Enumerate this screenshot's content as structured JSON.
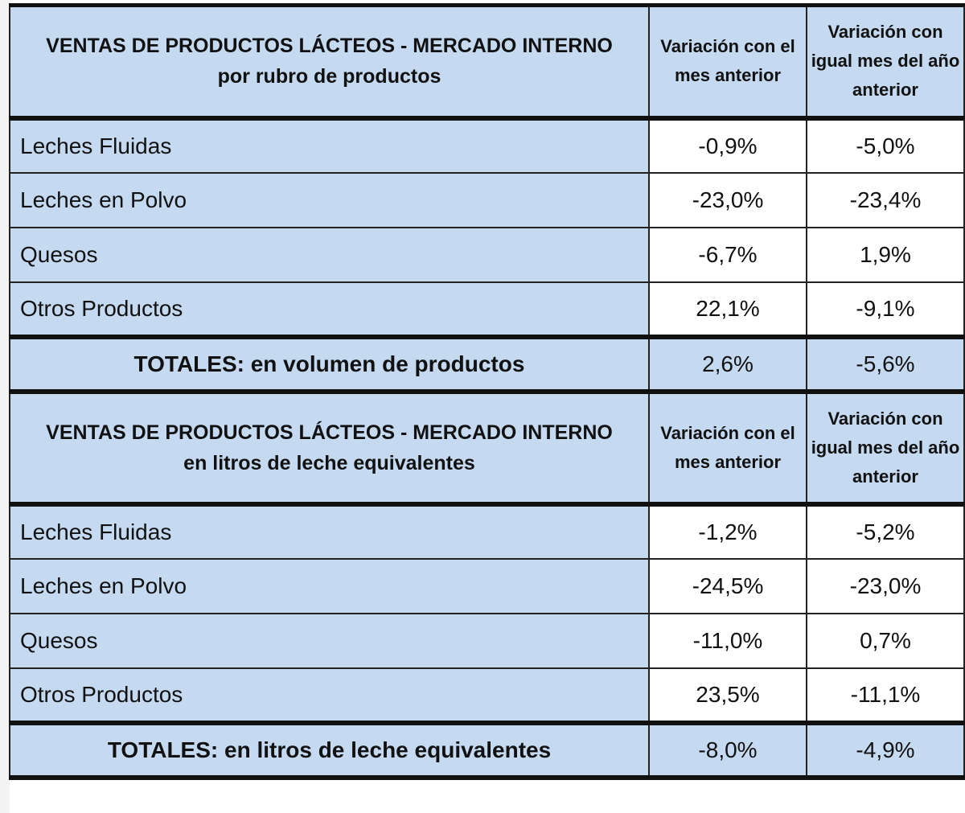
{
  "chart_data": [
    {
      "type": "table",
      "title_line1": "VENTAS DE PRODUCTOS LÁCTEOS - MERCADO INTERNO",
      "title_line2": "por rubro de productos",
      "col1_header": "Variación con el mes anterior",
      "col2_header": "Variación con igual mes del año anterior",
      "rows": [
        {
          "label": "Leches Fluidas",
          "mom": "-0,9%",
          "yoy": "-5,0%"
        },
        {
          "label": "Leches en Polvo",
          "mom": "-23,0%",
          "yoy": "-23,4%"
        },
        {
          "label": "Quesos",
          "mom": "-6,7%",
          "yoy": "1,9%"
        },
        {
          "label": "Otros Productos",
          "mom": "22,1%",
          "yoy": "-9,1%"
        }
      ],
      "total": {
        "label": "TOTALES: en volumen de productos",
        "mom": "2,6%",
        "yoy": "-5,6%"
      }
    },
    {
      "type": "table",
      "title_line1": "VENTAS DE PRODUCTOS LÁCTEOS - MERCADO INTERNO",
      "title_line2": "en litros de leche equivalentes",
      "col1_header": "Variación con el mes anterior",
      "col2_header": "Variación con igual mes del año anterior",
      "rows": [
        {
          "label": "Leches Fluidas",
          "mom": "-1,2%",
          "yoy": "-5,2%"
        },
        {
          "label": "Leches en Polvo",
          "mom": "-24,5%",
          "yoy": "-23,0%"
        },
        {
          "label": "Quesos",
          "mom": "-11,0%",
          "yoy": "0,7%"
        },
        {
          "label": "Otros Productos",
          "mom": "23,5%",
          "yoy": "-11,1%"
        }
      ],
      "total": {
        "label": "TOTALES: en litros de leche equivalentes",
        "mom": "-8,0%",
        "yoy": "-4,9%"
      }
    }
  ],
  "colors": {
    "header_fill": "#c5d9f1",
    "cell_fill": "#ffffff",
    "border": "#222222"
  }
}
